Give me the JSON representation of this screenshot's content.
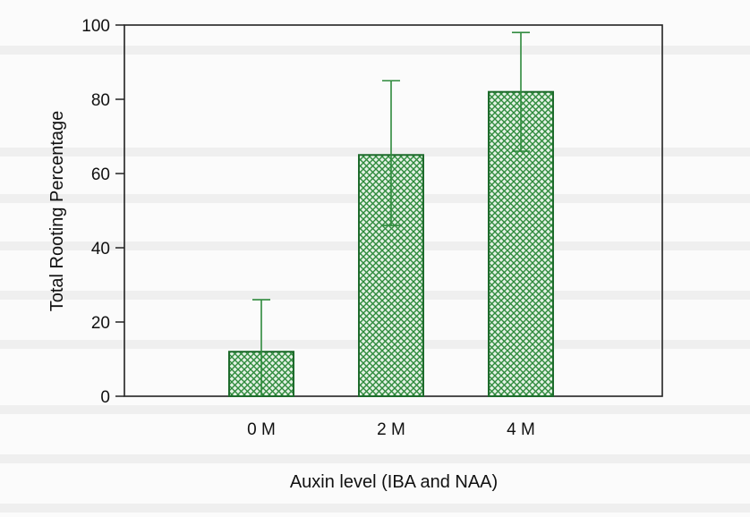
{
  "chart_data": {
    "type": "bar",
    "title": "",
    "xlabel": "Auxin level (IBA and NAA)",
    "ylabel": "Total Rooting Percentage",
    "categories": [
      "0  M",
      "2  M",
      "4  M"
    ],
    "series": [
      {
        "values": [
          12,
          65,
          82
        ],
        "error_upper": [
          26,
          85,
          98
        ],
        "error_lower": [
          0,
          46,
          66
        ]
      }
    ],
    "ylim": [
      0,
      100
    ],
    "yticks": [
      0,
      20,
      40,
      60,
      80,
      100
    ],
    "grid": false,
    "legend": "none",
    "bar_fill": "crosshatch",
    "colors": {
      "bar": "#2e8a3c",
      "bar_stroke": "#1e6b2c",
      "hatch_bg": "#e3f1e4",
      "error_bar": "#2e8a3c"
    }
  }
}
